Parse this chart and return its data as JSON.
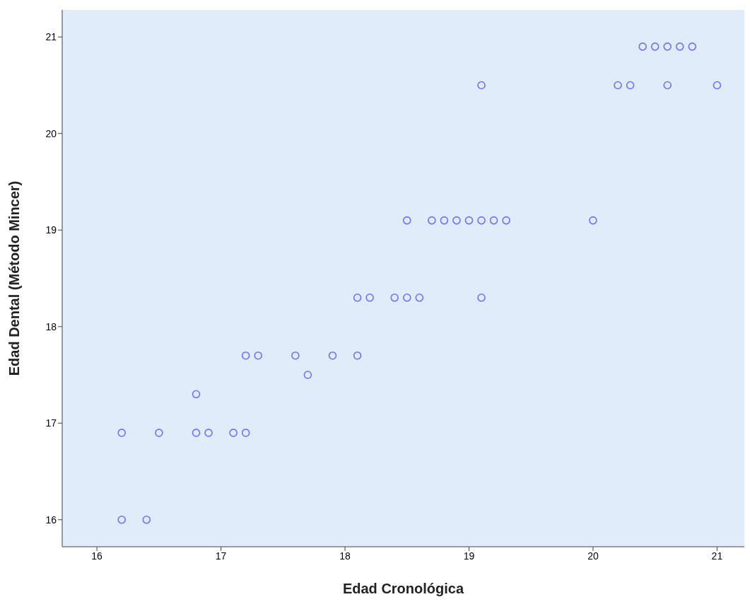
{
  "chart_data": {
    "type": "scatter",
    "xlabel": "Edad Cronológica",
    "ylabel": "Edad Dental (Método Mincer)",
    "x": [
      16.2,
      16.4,
      16.2,
      16.5,
      16.8,
      16.9,
      17.1,
      17.2,
      16.8,
      17.7,
      17.2,
      17.3,
      17.6,
      17.9,
      18.1,
      18.1,
      18.2,
      18.4,
      18.5,
      18.6,
      19.1,
      18.5,
      18.7,
      18.8,
      18.9,
      19.0,
      19.1,
      19.2,
      19.3,
      20.0,
      19.1,
      20.2,
      20.3,
      20.6,
      21.0,
      20.4,
      20.5,
      20.6,
      20.7,
      20.8
    ],
    "values": [
      16.0,
      16.0,
      16.9,
      16.9,
      16.9,
      16.9,
      16.9,
      16.9,
      17.3,
      17.5,
      17.7,
      17.7,
      17.7,
      17.7,
      17.7,
      18.3,
      18.3,
      18.3,
      18.3,
      18.3,
      18.3,
      19.1,
      19.1,
      19.1,
      19.1,
      19.1,
      19.1,
      19.1,
      19.1,
      19.1,
      20.5,
      20.5,
      20.5,
      20.5,
      20.5,
      20.9,
      20.9,
      20.9,
      20.9,
      20.9
    ],
    "color": "#7070ff",
    "marker": "circle",
    "grid": false,
    "xlim": [
      15.72,
      21.22
    ],
    "xticks": [
      16,
      17,
      18,
      19,
      20,
      21
    ],
    "ylim": [
      15.72,
      21.28
    ],
    "yticks": [
      16,
      17,
      18,
      19,
      20,
      21
    ]
  }
}
